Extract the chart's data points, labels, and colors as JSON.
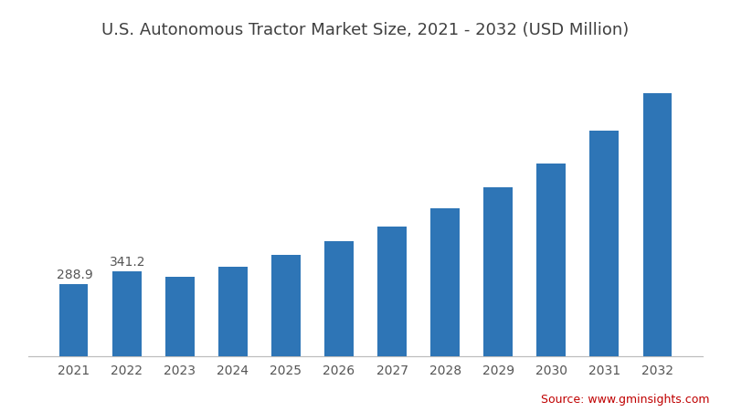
{
  "title": "U.S. Autonomous Tractor Market Size, 2021 - 2032 (USD Million)",
  "years": [
    2021,
    2022,
    2023,
    2024,
    2025,
    2026,
    2027,
    2028,
    2029,
    2030,
    2031,
    2032
  ],
  "values": [
    288.9,
    341.2,
    318.0,
    358.0,
    405.0,
    462.0,
    522.0,
    595.0,
    678.0,
    775.0,
    905.0,
    1055.0
  ],
  "bar_color": "#2e75b6",
  "background_color": "#ffffff",
  "title_color": "#404040",
  "label_color": "#555555",
  "annotation_2021": "288.9",
  "annotation_2022": "341.2",
  "source_text": "Source: www.gminsights.com",
  "source_color": "#c00000",
  "title_fontsize": 13,
  "annotation_fontsize": 10,
  "tick_fontsize": 10,
  "source_fontsize": 9,
  "ylim_min": 0,
  "ylim_max": 1200,
  "bar_width": 0.55
}
